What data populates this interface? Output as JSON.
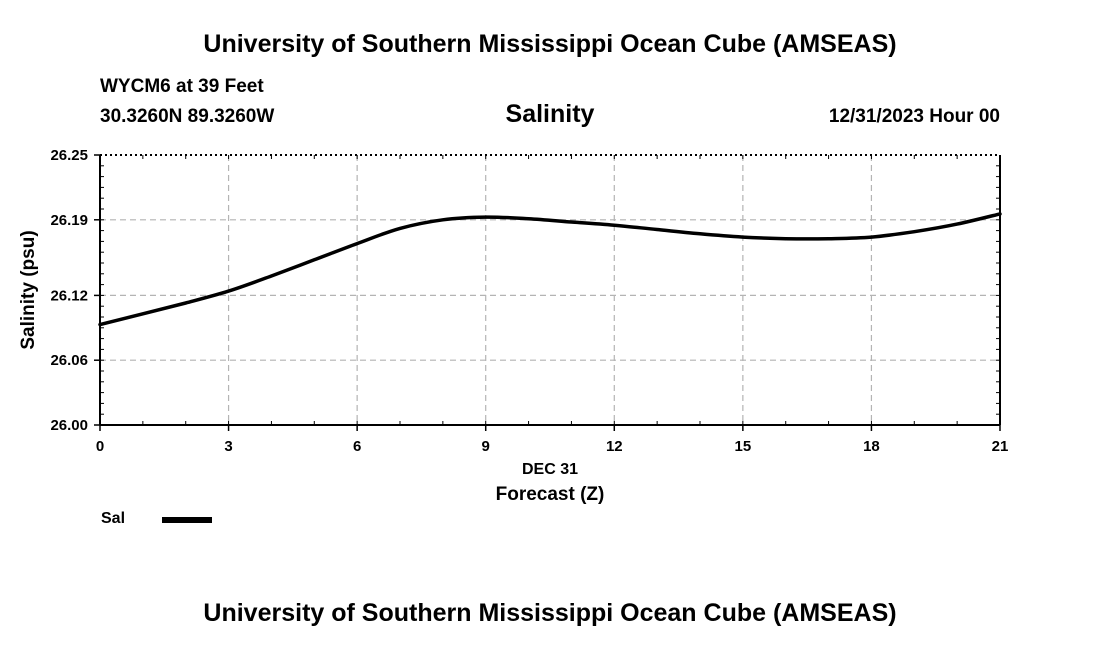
{
  "header": {
    "title_top": "University of Southern Mississippi Ocean Cube (AMSEAS)",
    "station": "WYCM6 at 39 Feet",
    "coordinates": "30.3260N  89.3260W",
    "datetime": "12/31/2023 Hour 00"
  },
  "footer": {
    "title_bottom": "University of Southern Mississippi Ocean Cube (AMSEAS)"
  },
  "legend": {
    "label": "Sal"
  },
  "colors": {
    "line": "#000000",
    "grid": "#b4b4b4"
  },
  "chart_data": {
    "type": "line",
    "title": "Salinity",
    "xlabel": "Forecast (Z)",
    "xlabel_date": "DEC 31",
    "ylabel": "Salinity (psu)",
    "xlim": [
      0,
      21
    ],
    "ylim": [
      26.0,
      26.25
    ],
    "xticks": [
      0,
      3,
      6,
      9,
      12,
      15,
      18,
      21
    ],
    "yticks": [
      26.0,
      26.06,
      26.12,
      26.19,
      26.25
    ],
    "ytick_labels": [
      "26.00",
      "26.06",
      "26.12",
      "26.19",
      "26.25"
    ],
    "grid": true,
    "series": [
      {
        "name": "Sal",
        "x": [
          0,
          1,
          2,
          3,
          4,
          5,
          6,
          7,
          8,
          9,
          10,
          11,
          12,
          13,
          14,
          15,
          16,
          17,
          18,
          19,
          20,
          21
        ],
        "values": [
          26.093,
          26.103,
          26.113,
          26.124,
          26.138,
          26.153,
          26.168,
          26.182,
          26.19,
          26.1925,
          26.191,
          26.188,
          26.185,
          26.181,
          26.177,
          26.174,
          26.1725,
          26.1725,
          26.174,
          26.179,
          26.186,
          26.1955
        ]
      }
    ]
  }
}
